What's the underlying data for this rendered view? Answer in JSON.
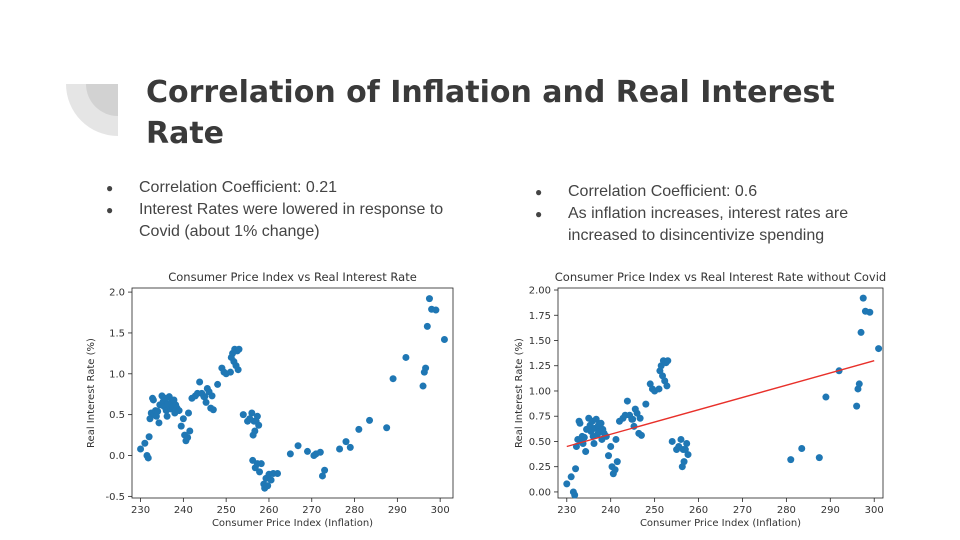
{
  "slide": {
    "title": "Correlation of Inflation and Real Interest Rate",
    "left_bullets": [
      "Correlation Coefficient: 0.21",
      "Interest Rates were lowered in response to Covid (about 1% change)"
    ],
    "right_bullets": [
      "Correlation Coefficient: 0.6",
      "As inflation increases, interest rates are increased to disincentivize spending"
    ]
  },
  "colors": {
    "title": "#3a3a3a",
    "text": "#444444",
    "points": "#1f77b4",
    "trendline": "#e8302a",
    "decoration": "#e5e5e5"
  },
  "chart_data": [
    {
      "type": "scatter",
      "title": "Consumer Price Index vs Real Interest Rate",
      "xlabel": "Consumer Price Index (Inflation)",
      "ylabel": "Real Interest Rate (%)",
      "xlim": [
        228,
        303
      ],
      "ylim": [
        -0.52,
        2.05
      ],
      "xticks": [
        230,
        240,
        250,
        260,
        270,
        280,
        290,
        300
      ],
      "yticks": [
        -0.5,
        0.0,
        0.5,
        1.0,
        1.5,
        2.0
      ],
      "ytick_labels": [
        "-0.5",
        "0.0",
        "0.5",
        "1.0",
        "1.5",
        "2.0"
      ],
      "grid": false,
      "points": [
        [
          230.0,
          0.08
        ],
        [
          231.0,
          0.15
        ],
        [
          231.5,
          0.0
        ],
        [
          231.8,
          -0.03
        ],
        [
          232.0,
          0.23
        ],
        [
          232.2,
          0.45
        ],
        [
          232.5,
          0.52
        ],
        [
          232.8,
          0.7
        ],
        [
          233.0,
          0.68
        ],
        [
          233.2,
          0.5
        ],
        [
          233.5,
          0.55
        ],
        [
          233.7,
          0.48
        ],
        [
          234.0,
          0.54
        ],
        [
          234.3,
          0.4
        ],
        [
          234.5,
          0.62
        ],
        [
          235.0,
          0.73
        ],
        [
          235.3,
          0.66
        ],
        [
          235.5,
          0.6
        ],
        [
          235.8,
          0.7
        ],
        [
          236.0,
          0.55
        ],
        [
          236.2,
          0.48
        ],
        [
          236.4,
          0.63
        ],
        [
          236.7,
          0.72
        ],
        [
          237.0,
          0.57
        ],
        [
          237.2,
          0.66
        ],
        [
          237.5,
          0.6
        ],
        [
          237.8,
          0.68
        ],
        [
          238.0,
          0.52
        ],
        [
          238.2,
          0.62
        ],
        [
          238.5,
          0.58
        ],
        [
          239.0,
          0.55
        ],
        [
          239.5,
          0.36
        ],
        [
          240.0,
          0.45
        ],
        [
          240.3,
          0.25
        ],
        [
          240.6,
          0.18
        ],
        [
          241.0,
          0.22
        ],
        [
          241.2,
          0.52
        ],
        [
          241.5,
          0.3
        ],
        [
          242.0,
          0.7
        ],
        [
          242.8,
          0.73
        ],
        [
          243.3,
          0.76
        ],
        [
          243.8,
          0.9
        ],
        [
          244.3,
          0.76
        ],
        [
          244.8,
          0.72
        ],
        [
          245.0,
          0.72
        ],
        [
          245.3,
          0.65
        ],
        [
          245.6,
          0.82
        ],
        [
          246.0,
          0.78
        ],
        [
          246.4,
          0.58
        ],
        [
          246.7,
          0.73
        ],
        [
          247.0,
          0.56
        ],
        [
          248.0,
          0.87
        ],
        [
          249.0,
          1.07
        ],
        [
          249.5,
          1.02
        ],
        [
          250.0,
          1.0
        ],
        [
          251.0,
          1.02
        ],
        [
          251.2,
          1.2
        ],
        [
          251.5,
          1.25
        ],
        [
          251.8,
          1.15
        ],
        [
          252.0,
          1.3
        ],
        [
          252.3,
          1.1
        ],
        [
          252.6,
          1.28
        ],
        [
          252.8,
          1.05
        ],
        [
          253.0,
          1.3
        ],
        [
          254.0,
          0.5
        ],
        [
          255.0,
          0.42
        ],
        [
          255.5,
          0.45
        ],
        [
          256.0,
          0.52
        ],
        [
          256.3,
          0.25
        ],
        [
          256.5,
          0.42
        ],
        [
          256.7,
          0.3
        ],
        [
          257.0,
          0.42
        ],
        [
          257.3,
          0.48
        ],
        [
          257.6,
          0.37
        ],
        [
          256.2,
          -0.06
        ],
        [
          256.8,
          -0.15
        ],
        [
          257.3,
          -0.1
        ],
        [
          257.8,
          -0.2
        ],
        [
          258.2,
          -0.1
        ],
        [
          258.8,
          -0.35
        ],
        [
          259.0,
          -0.4
        ],
        [
          259.3,
          -0.28
        ],
        [
          259.7,
          -0.37
        ],
        [
          260.0,
          -0.23
        ],
        [
          260.5,
          -0.3
        ],
        [
          261.0,
          -0.22
        ],
        [
          262.0,
          -0.22
        ],
        [
          265.0,
          0.02
        ],
        [
          266.8,
          0.12
        ],
        [
          269.0,
          0.05
        ],
        [
          270.5,
          0.0
        ],
        [
          271.0,
          0.02
        ],
        [
          272.0,
          0.04
        ],
        [
          272.5,
          -0.25
        ],
        [
          273.0,
          -0.18
        ],
        [
          276.5,
          0.08
        ],
        [
          278.0,
          0.17
        ],
        [
          279.0,
          0.1
        ],
        [
          281.0,
          0.32
        ],
        [
          283.5,
          0.43
        ],
        [
          287.5,
          0.34
        ],
        [
          289.0,
          0.94
        ],
        [
          292.0,
          1.2
        ],
        [
          296.0,
          0.85
        ],
        [
          296.3,
          1.02
        ],
        [
          296.6,
          1.07
        ],
        [
          297.0,
          1.58
        ],
        [
          297.5,
          1.92
        ],
        [
          298.0,
          1.79
        ],
        [
          299.0,
          1.78
        ],
        [
          301.0,
          1.42
        ]
      ]
    },
    {
      "type": "scatter",
      "title": "Consumer Price Index vs Real Interest Rate without Covid",
      "xlabel": "Consumer Price Index (Inflation)",
      "ylabel": "Real Interest Rate (%)",
      "xlim": [
        228,
        302
      ],
      "ylim": [
        -0.06,
        2.02
      ],
      "xticks": [
        230,
        240,
        250,
        260,
        270,
        280,
        290,
        300
      ],
      "yticks": [
        0.0,
        0.25,
        0.5,
        0.75,
        1.0,
        1.25,
        1.5,
        1.75,
        2.0
      ],
      "ytick_labels": [
        "0.00",
        "0.25",
        "0.50",
        "0.75",
        "1.00",
        "1.25",
        "1.50",
        "1.75",
        "2.00"
      ],
      "grid": false,
      "trendline": {
        "x": [
          230,
          300
        ],
        "y": [
          0.45,
          1.3
        ]
      },
      "points": [
        [
          230.0,
          0.08
        ],
        [
          231.0,
          0.15
        ],
        [
          231.5,
          0.0
        ],
        [
          231.8,
          -0.03
        ],
        [
          232.0,
          0.23
        ],
        [
          232.2,
          0.45
        ],
        [
          232.5,
          0.52
        ],
        [
          232.8,
          0.7
        ],
        [
          233.0,
          0.68
        ],
        [
          233.2,
          0.5
        ],
        [
          233.5,
          0.55
        ],
        [
          233.7,
          0.48
        ],
        [
          234.0,
          0.54
        ],
        [
          234.3,
          0.4
        ],
        [
          234.5,
          0.62
        ],
        [
          235.0,
          0.73
        ],
        [
          235.3,
          0.66
        ],
        [
          235.5,
          0.6
        ],
        [
          235.8,
          0.7
        ],
        [
          236.0,
          0.55
        ],
        [
          236.2,
          0.48
        ],
        [
          236.4,
          0.63
        ],
        [
          236.7,
          0.72
        ],
        [
          237.0,
          0.57
        ],
        [
          237.2,
          0.66
        ],
        [
          237.5,
          0.6
        ],
        [
          237.8,
          0.68
        ],
        [
          238.0,
          0.52
        ],
        [
          238.2,
          0.62
        ],
        [
          238.5,
          0.58
        ],
        [
          239.0,
          0.55
        ],
        [
          239.5,
          0.36
        ],
        [
          240.0,
          0.45
        ],
        [
          240.3,
          0.25
        ],
        [
          240.6,
          0.18
        ],
        [
          241.0,
          0.22
        ],
        [
          241.2,
          0.52
        ],
        [
          241.5,
          0.3
        ],
        [
          242.0,
          0.7
        ],
        [
          242.8,
          0.73
        ],
        [
          243.3,
          0.76
        ],
        [
          243.8,
          0.9
        ],
        [
          244.3,
          0.76
        ],
        [
          244.8,
          0.72
        ],
        [
          245.0,
          0.72
        ],
        [
          245.3,
          0.65
        ],
        [
          245.6,
          0.82
        ],
        [
          246.0,
          0.78
        ],
        [
          246.4,
          0.58
        ],
        [
          246.7,
          0.73
        ],
        [
          247.0,
          0.56
        ],
        [
          248.0,
          0.87
        ],
        [
          249.0,
          1.07
        ],
        [
          249.5,
          1.02
        ],
        [
          250.0,
          1.0
        ],
        [
          251.0,
          1.02
        ],
        [
          251.2,
          1.2
        ],
        [
          251.5,
          1.25
        ],
        [
          251.8,
          1.15
        ],
        [
          252.0,
          1.3
        ],
        [
          252.3,
          1.1
        ],
        [
          252.6,
          1.28
        ],
        [
          252.8,
          1.05
        ],
        [
          253.0,
          1.3
        ],
        [
          254.0,
          0.5
        ],
        [
          255.0,
          0.42
        ],
        [
          255.5,
          0.45
        ],
        [
          256.0,
          0.52
        ],
        [
          256.3,
          0.25
        ],
        [
          256.5,
          0.42
        ],
        [
          256.7,
          0.3
        ],
        [
          257.0,
          0.42
        ],
        [
          257.3,
          0.48
        ],
        [
          257.6,
          0.37
        ],
        [
          281.0,
          0.32
        ],
        [
          283.5,
          0.43
        ],
        [
          287.5,
          0.34
        ],
        [
          289.0,
          0.94
        ],
        [
          292.0,
          1.2
        ],
        [
          296.0,
          0.85
        ],
        [
          296.3,
          1.02
        ],
        [
          296.6,
          1.07
        ],
        [
          297.0,
          1.58
        ],
        [
          297.5,
          1.92
        ],
        [
          298.0,
          1.79
        ],
        [
          299.0,
          1.78
        ],
        [
          301.0,
          1.42
        ]
      ]
    }
  ]
}
